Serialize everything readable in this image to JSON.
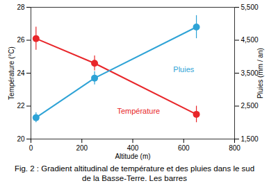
{
  "chart_data": {
    "type": "line",
    "title": "Fig. 2 : Gradient altitudinal de température et des pluies dans le sud de la Basse-Terre. Les barres",
    "x_label": "Altitude (m)",
    "y_label": "Température (°C)",
    "y2_label": "Pluies (mm / an)",
    "x": [
      20,
      250,
      650
    ],
    "xlim": [
      0,
      800
    ],
    "xticks": [
      0,
      200,
      400,
      600,
      800
    ],
    "ylim": [
      20,
      28
    ],
    "yticks": [
      20,
      22,
      24,
      26,
      28
    ],
    "y2lim": [
      1500,
      5500
    ],
    "y2ticks": [
      1500,
      2500,
      3500,
      4500,
      5500
    ],
    "grid": false,
    "series": [
      {
        "name": "Température",
        "color": "#e8262a",
        "marker": "circle",
        "values": [
          26.1,
          24.6,
          21.5
        ],
        "errors": [
          0.7,
          0.45,
          0.5
        ]
      },
      {
        "name": "Pluies",
        "color": "#2ea3d6",
        "marker": "circle",
        "axis": "y2",
        "values": [
          2150,
          3350,
          4900
        ],
        "errors": [
          150,
          200,
          350
        ]
      }
    ]
  }
}
